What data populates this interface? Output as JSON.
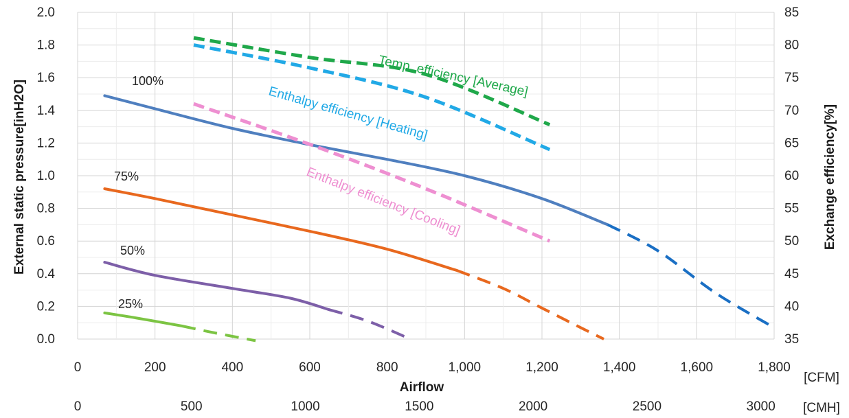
{
  "chart_data": {
    "type": "line",
    "xlabel": "Airflow",
    "ylabel": "External static pressure[inH2O]",
    "y2label": "Exchange efficiency[%]",
    "x_unit": "[CFM]",
    "x2_unit": "[CMH]",
    "xlim": [
      0,
      1800
    ],
    "x_ticks": [
      "0",
      "200",
      "400",
      "600",
      "800",
      "1,000",
      "1,200",
      "1,400",
      "1,600",
      "1,800"
    ],
    "x2_ticks": [
      "0",
      "500",
      "1000",
      "1500",
      "2000",
      "2500",
      "3000"
    ],
    "ylim": [
      0.0,
      2.0
    ],
    "y_ticks": [
      "0.0",
      "0.2",
      "0.4",
      "0.6",
      "0.8",
      "1.0",
      "1.2",
      "1.4",
      "1.6",
      "1.8",
      "2.0"
    ],
    "y2lim": [
      35,
      85
    ],
    "y2_ticks": [
      "35",
      "40",
      "45",
      "50",
      "55",
      "60",
      "65",
      "70",
      "75",
      "80",
      "85"
    ],
    "grid": true,
    "series": [
      {
        "name": "100%",
        "axis": "left",
        "color": "#4f7fbf",
        "solid": [
          [
            70,
            1.49
          ],
          [
            200,
            1.41
          ],
          [
            400,
            1.29
          ],
          [
            600,
            1.19
          ],
          [
            800,
            1.1
          ],
          [
            1000,
            1.0
          ],
          [
            1200,
            0.86
          ],
          [
            1370,
            0.7
          ]
        ],
        "dashed": [
          [
            1370,
            0.7
          ],
          [
            1500,
            0.54
          ],
          [
            1650,
            0.28
          ],
          [
            1800,
            0.07
          ]
        ],
        "dashed_color": "#1a6fc4"
      },
      {
        "name": "75%",
        "axis": "left",
        "color": "#e8681e",
        "solid": [
          [
            70,
            0.92
          ],
          [
            200,
            0.86
          ],
          [
            400,
            0.76
          ],
          [
            600,
            0.66
          ],
          [
            800,
            0.55
          ],
          [
            980,
            0.42
          ]
        ],
        "dashed": [
          [
            980,
            0.42
          ],
          [
            1100,
            0.31
          ],
          [
            1200,
            0.19
          ],
          [
            1300,
            0.07
          ],
          [
            1360,
            0.0
          ]
        ]
      },
      {
        "name": "50%",
        "axis": "left",
        "color": "#7d5fa8",
        "solid": [
          [
            70,
            0.47
          ],
          [
            200,
            0.39
          ],
          [
            400,
            0.31
          ],
          [
            550,
            0.25
          ],
          [
            650,
            0.18
          ]
        ],
        "dashed": [
          [
            650,
            0.18
          ],
          [
            750,
            0.11
          ],
          [
            860,
            0.0
          ]
        ]
      },
      {
        "name": "25%",
        "axis": "left",
        "color": "#7cc443",
        "solid": [
          [
            70,
            0.16
          ],
          [
            150,
            0.13
          ],
          [
            270,
            0.08
          ]
        ],
        "dashed": [
          [
            270,
            0.08
          ],
          [
            350,
            0.04
          ],
          [
            460,
            -0.01
          ]
        ]
      },
      {
        "name": "Temp. efficiency [Average]",
        "axis": "right",
        "color": "#1fa84a",
        "style": "dashed",
        "points": [
          [
            300,
            81.1
          ],
          [
            600,
            78.1
          ],
          [
            900,
            75.5
          ],
          [
            1220,
            67.8
          ]
        ]
      },
      {
        "name": "Enthalpy efficiency [Heating]",
        "axis": "right",
        "color": "#21a9e6",
        "style": "dashed",
        "points": [
          [
            300,
            80.0
          ],
          [
            600,
            76.5
          ],
          [
            900,
            72.0
          ],
          [
            1220,
            64.0
          ]
        ]
      },
      {
        "name": "Enthalpy efficiency [Cooling]",
        "axis": "right",
        "color": "#ee8fd1",
        "style": "dashed",
        "points": [
          [
            300,
            71.0
          ],
          [
            600,
            64.8
          ],
          [
            900,
            58.0
          ],
          [
            1220,
            50.0
          ]
        ]
      }
    ],
    "labels": {
      "p100": "100%",
      "p75": "75%",
      "p50": "50%",
      "p25": "25%",
      "temp": "Temp. efficiency [Average]",
      "heat": "Enthalpy efficiency [Heating]",
      "cool": "Enthalpy efficiency [Cooling]"
    }
  }
}
